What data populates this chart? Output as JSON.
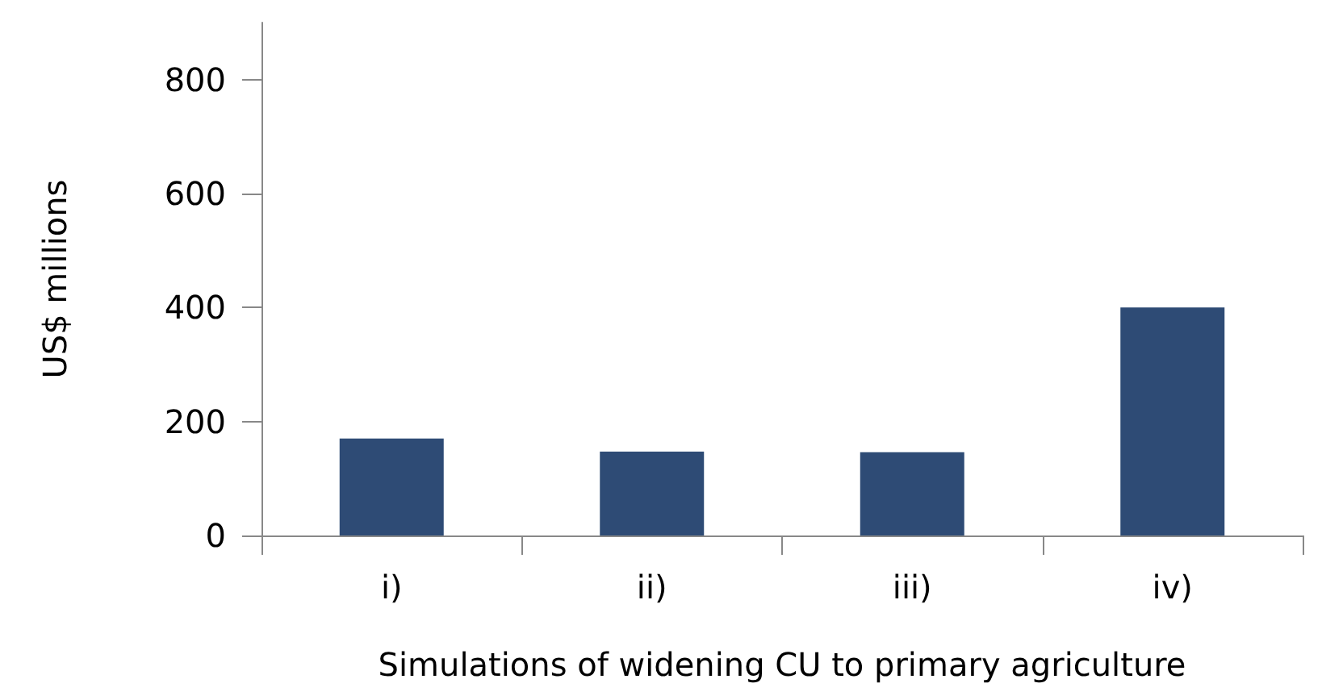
{
  "chart_data": {
    "type": "bar",
    "xlabel": "Simulations of widening CU to primary agriculture",
    "ylabel": "US$ millions",
    "categories": [
      "i)",
      "ii)",
      "iii)",
      "iv)"
    ],
    "values": [
      170,
      147,
      146,
      400
    ],
    "color": "#2e4b75",
    "ylim": [
      0,
      900
    ],
    "yticks": [
      0,
      200,
      400,
      600,
      800
    ],
    "grid": false
  }
}
